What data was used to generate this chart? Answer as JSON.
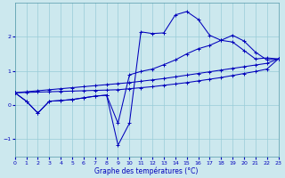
{
  "xlabel": "Graphe des températures (°C)",
  "bg_color": "#cce8ee",
  "grid_color": "#99ccd8",
  "line_color": "#0000bb",
  "xlim": [
    0,
    23
  ],
  "ylim": [
    -1.55,
    3.0
  ],
  "yticks": [
    -1,
    0,
    1,
    2
  ],
  "xticks": [
    0,
    1,
    2,
    3,
    4,
    5,
    6,
    7,
    8,
    9,
    10,
    11,
    12,
    13,
    14,
    15,
    16,
    17,
    18,
    19,
    20,
    21,
    22,
    23
  ],
  "curve1_x": [
    0,
    1,
    2,
    3,
    4,
    5,
    6,
    7,
    8,
    9,
    10,
    11,
    12,
    13,
    14,
    15,
    16,
    17,
    18,
    19,
    20,
    21,
    22,
    23
  ],
  "curve1_y": [
    0.35,
    0.1,
    -0.25,
    0.1,
    0.12,
    0.15,
    0.2,
    0.25,
    0.28,
    -1.2,
    -0.55,
    2.15,
    2.1,
    2.12,
    2.65,
    2.75,
    2.52,
    2.05,
    1.9,
    1.85,
    1.6,
    1.35,
    1.38,
    1.35
  ],
  "curve2_x": [
    0,
    1,
    2,
    3,
    4,
    5,
    6,
    7,
    8,
    9,
    10,
    11,
    12,
    13,
    14,
    15,
    16,
    17,
    18,
    19,
    20,
    21,
    22,
    23
  ],
  "curve2_y": [
    0.35,
    0.1,
    -0.25,
    0.1,
    0.12,
    0.15,
    0.2,
    0.25,
    0.28,
    -0.55,
    0.88,
    0.98,
    1.05,
    1.18,
    1.32,
    1.5,
    1.65,
    1.75,
    1.9,
    2.05,
    1.88,
    1.55,
    1.32,
    1.35
  ],
  "curve3_x": [
    0,
    1,
    2,
    3,
    4,
    5,
    6,
    7,
    8,
    9,
    10,
    11,
    12,
    13,
    14,
    15,
    16,
    17,
    18,
    19,
    20,
    21,
    22,
    23
  ],
  "curve3_y": [
    0.35,
    0.38,
    0.41,
    0.44,
    0.47,
    0.5,
    0.53,
    0.56,
    0.59,
    0.62,
    0.65,
    0.69,
    0.73,
    0.77,
    0.82,
    0.87,
    0.92,
    0.97,
    1.02,
    1.07,
    1.12,
    1.17,
    1.22,
    1.35
  ],
  "curve4_x": [
    0,
    1,
    2,
    3,
    4,
    5,
    6,
    7,
    8,
    9,
    10,
    11,
    12,
    13,
    14,
    15,
    16,
    17,
    18,
    19,
    20,
    21,
    22,
    23
  ],
  "curve4_y": [
    0.35,
    0.36,
    0.37,
    0.38,
    0.39,
    0.4,
    0.41,
    0.42,
    0.43,
    0.44,
    0.47,
    0.5,
    0.53,
    0.57,
    0.61,
    0.65,
    0.7,
    0.75,
    0.8,
    0.86,
    0.92,
    0.98,
    1.05,
    1.35
  ],
  "figsize": [
    3.2,
    2.0
  ],
  "dpi": 100
}
